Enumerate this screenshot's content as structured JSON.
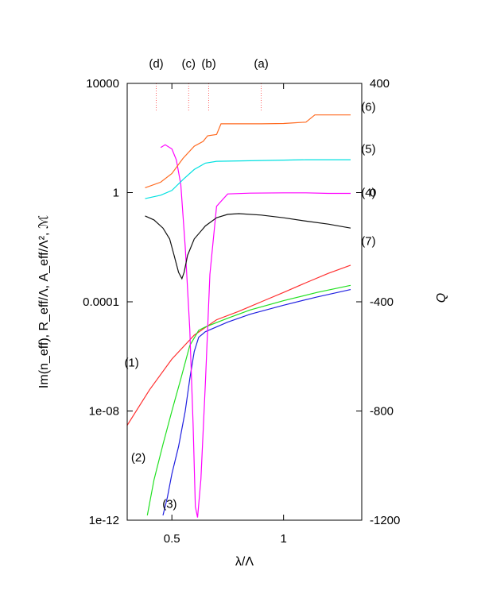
{
  "chart_data": {
    "type": "line",
    "xlabel": "λ/Λ",
    "ylabel_left": "Im(n_eff), R_eff/Λ, A_eff/Λ², ℳ",
    "ylabel_right": "Q",
    "xlim": [
      0.3,
      1.35
    ],
    "ylim_left": [
      1e-12,
      10000
    ],
    "y_scale_left": "log",
    "ylim_right": [
      -1200,
      400
    ],
    "x_ticks": [
      {
        "value": 0.5,
        "label": "0.5"
      },
      {
        "value": 1.0,
        "label": "1"
      }
    ],
    "y_ticks_left": [
      {
        "value": 1e-12,
        "label": "1e-12"
      },
      {
        "value": 1e-08,
        "label": "1e-08"
      },
      {
        "value": 0.0001,
        "label": "0.0001"
      },
      {
        "value": 1,
        "label": "1"
      },
      {
        "value": 10000,
        "label": "10000"
      }
    ],
    "y_ticks_right": [
      {
        "value": -1200,
        "label": "-1200"
      },
      {
        "value": -800,
        "label": "-800"
      },
      {
        "value": -400,
        "label": "-400"
      },
      {
        "value": 0,
        "label": "0"
      },
      {
        "value": 400,
        "label": "400"
      }
    ],
    "markers": [
      {
        "label": "(d)",
        "x": 0.43
      },
      {
        "label": "(c)",
        "x": 0.575
      },
      {
        "label": "(b)",
        "x": 0.665
      },
      {
        "label": "(a)",
        "x": 0.9
      }
    ],
    "series": [
      {
        "name": "(1)",
        "axis": "left",
        "color": "#ff3030",
        "label_pos": [
          0.32,
          6e-07
        ],
        "points": [
          [
            0.3,
            3e-09
          ],
          [
            0.4,
            6e-08
          ],
          [
            0.5,
            8e-07
          ],
          [
            0.6,
            6e-06
          ],
          [
            0.7,
            2.2e-05
          ],
          [
            0.8,
            4.5e-05
          ],
          [
            0.9,
            0.0001
          ],
          [
            1.0,
            0.00022
          ],
          [
            1.1,
            0.0005
          ],
          [
            1.2,
            0.0011
          ],
          [
            1.3,
            0.0022
          ]
        ]
      },
      {
        "name": "(2)",
        "axis": "left",
        "color": "#20e020",
        "label_pos": [
          0.35,
          2e-10
        ],
        "points": [
          [
            0.39,
            1.5e-12
          ],
          [
            0.42,
            3e-11
          ],
          [
            0.46,
            6e-10
          ],
          [
            0.5,
            1e-08
          ],
          [
            0.54,
            1.5e-07
          ],
          [
            0.58,
            2.5e-06
          ],
          [
            0.62,
            9e-06
          ],
          [
            0.65,
            1.2e-05
          ],
          [
            0.75,
            2.5e-05
          ],
          [
            0.85,
            5e-05
          ],
          [
            1.0,
            0.00011
          ],
          [
            1.15,
            0.00022
          ],
          [
            1.3,
            0.0004
          ]
        ]
      },
      {
        "name": "(3)",
        "axis": "left",
        "color": "#2020e0",
        "label_pos": [
          0.49,
          4e-12
        ],
        "points": [
          [
            0.46,
            1.5e-12
          ],
          [
            0.48,
            7e-12
          ],
          [
            0.5,
            5e-11
          ],
          [
            0.53,
            5e-10
          ],
          [
            0.56,
            1e-08
          ],
          [
            0.58,
            1.5e-07
          ],
          [
            0.6,
            1.5e-06
          ],
          [
            0.62,
            5e-06
          ],
          [
            0.65,
            8e-06
          ],
          [
            0.75,
            1.8e-05
          ],
          [
            0.85,
            3.5e-05
          ],
          [
            1.0,
            7.5e-05
          ],
          [
            1.15,
            0.00015
          ],
          [
            1.3,
            0.00028
          ]
        ]
      },
      {
        "name": "(4)",
        "axis": "right",
        "color": "#ff00ff",
        "label_pos": [
          1.38,
          0
        ],
        "points": [
          [
            0.45,
            165
          ],
          [
            0.47,
            175
          ],
          [
            0.5,
            160
          ],
          [
            0.52,
            120
          ],
          [
            0.54,
            30
          ],
          [
            0.56,
            -200
          ],
          [
            0.58,
            -500
          ],
          [
            0.595,
            -850
          ],
          [
            0.605,
            -1150
          ],
          [
            0.615,
            -1190
          ],
          [
            0.63,
            -1050
          ],
          [
            0.65,
            -700
          ],
          [
            0.67,
            -300
          ],
          [
            0.7,
            -50
          ],
          [
            0.75,
            -5
          ],
          [
            0.85,
            -2
          ],
          [
            1.0,
            -1
          ],
          [
            1.1,
            -1
          ],
          [
            1.2,
            -3
          ],
          [
            1.3,
            -3
          ]
        ]
      },
      {
        "name": "(5)",
        "axis": "left",
        "color": "#00e0e0",
        "label_pos": [
          1.38,
          40
        ],
        "points": [
          [
            0.38,
            0.6
          ],
          [
            0.45,
            0.8
          ],
          [
            0.5,
            1.2
          ],
          [
            0.55,
            3
          ],
          [
            0.6,
            7
          ],
          [
            0.65,
            12
          ],
          [
            0.7,
            14
          ],
          [
            0.8,
            14.5
          ],
          [
            0.9,
            15
          ],
          [
            1.0,
            15.5
          ],
          [
            1.1,
            16
          ],
          [
            1.2,
            16
          ],
          [
            1.3,
            16
          ]
        ]
      },
      {
        "name": "(6)",
        "axis": "left",
        "color": "#ff6a20",
        "label_pos": [
          1.38,
          1400
        ],
        "points": [
          [
            0.38,
            1.5
          ],
          [
            0.45,
            2.4
          ],
          [
            0.5,
            5
          ],
          [
            0.55,
            18
          ],
          [
            0.6,
            50
          ],
          [
            0.64,
            75
          ],
          [
            0.66,
            120
          ],
          [
            0.7,
            135
          ],
          [
            0.72,
            330
          ],
          [
            0.8,
            330
          ],
          [
            0.9,
            330
          ],
          [
            1.0,
            340
          ],
          [
            1.05,
            360
          ],
          [
            1.1,
            380
          ],
          [
            1.14,
            700
          ],
          [
            1.2,
            700
          ],
          [
            1.3,
            700
          ]
        ]
      },
      {
        "name": "(7)",
        "axis": "left",
        "color": "#111111",
        "label_pos": [
          1.38,
          0.017
        ],
        "points": [
          [
            0.38,
            0.14
          ],
          [
            0.42,
            0.1
          ],
          [
            0.46,
            0.05
          ],
          [
            0.49,
            0.02
          ],
          [
            0.51,
            0.005
          ],
          [
            0.53,
            0.0012
          ],
          [
            0.545,
            0.0007
          ],
          [
            0.555,
            0.0012
          ],
          [
            0.57,
            0.005
          ],
          [
            0.6,
            0.02
          ],
          [
            0.65,
            0.06
          ],
          [
            0.7,
            0.12
          ],
          [
            0.75,
            0.16
          ],
          [
            0.8,
            0.17
          ],
          [
            0.9,
            0.15
          ],
          [
            1.0,
            0.12
          ],
          [
            1.1,
            0.09
          ],
          [
            1.2,
            0.07
          ],
          [
            1.3,
            0.05
          ]
        ]
      }
    ]
  }
}
